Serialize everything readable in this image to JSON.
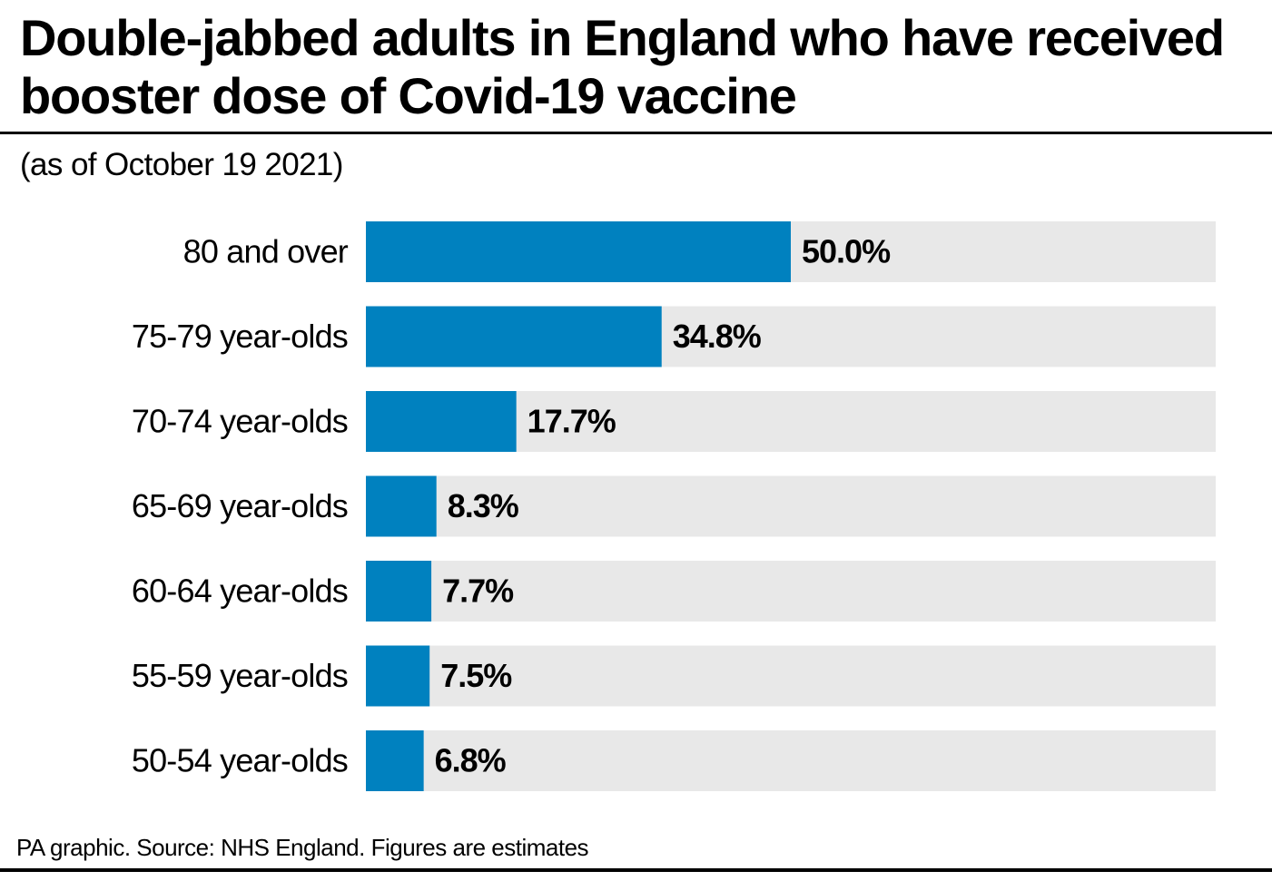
{
  "title": "Double-jabbed adults in England who have received booster dose of Covid-19 vaccine",
  "subtitle": "(as of October 19 2021)",
  "footer": "PA graphic. Source: NHS England. Figures are estimates",
  "colors": {
    "bar": "#0081bf",
    "track": "#e8e8e8",
    "text": "#000000"
  },
  "chart_data": {
    "type": "bar",
    "orientation": "horizontal",
    "categories": [
      "80 and over",
      "75-79 year-olds",
      "70-74 year-olds",
      "65-69 year-olds",
      "60-64 year-olds",
      "55-59 year-olds",
      "50-54 year-olds"
    ],
    "values": [
      50.0,
      34.8,
      17.7,
      8.3,
      7.7,
      7.5,
      6.8
    ],
    "value_labels": [
      "50.0%",
      "34.8%",
      "17.7%",
      "8.3%",
      "7.7%",
      "7.5%",
      "6.8%"
    ],
    "xlim": [
      0,
      100
    ],
    "grid": false,
    "legend": "none"
  }
}
